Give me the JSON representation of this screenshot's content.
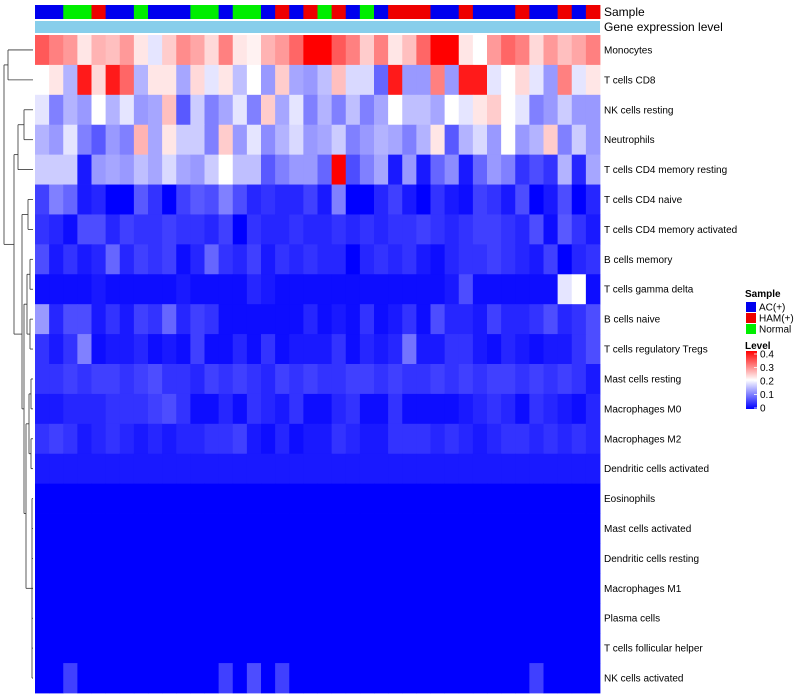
{
  "chart_data": {
    "type": "heatmap",
    "annotations": {
      "sample_label": "Sample",
      "gene_label": "Gene expression level",
      "sample_groups": [
        "AC",
        "AC",
        "N",
        "N",
        "H",
        "AC",
        "AC",
        "N",
        "AC",
        "AC",
        "AC",
        "N",
        "N",
        "AC",
        "N",
        "N",
        "AC",
        "H",
        "AC",
        "H",
        "N",
        "H",
        "AC",
        "N",
        "AC",
        "H",
        "H",
        "H",
        "AC",
        "AC",
        "H",
        "AC",
        "AC",
        "AC",
        "H",
        "AC",
        "AC",
        "H",
        "AC",
        "H"
      ],
      "gene_color": "#87ceeb"
    },
    "rows": [
      "Monocytes",
      "T cells CD8",
      "NK cells resting",
      "Neutrophils",
      "T cells CD4 memory resting",
      "T cells CD4 naive",
      "T cells CD4 memory activated",
      "B cells memory",
      "T cells gamma delta",
      "B cells naive",
      "T cells regulatory  Tregs",
      "Mast cells resting",
      "Macrophages M0",
      "Macrophages M2",
      "Dendritic cells activated",
      "Eosinophils",
      "Mast cells activated",
      "Dendritic cells resting",
      "Macrophages M1",
      "Plasma cells",
      "T cells follicular helper",
      "NK cells activated"
    ],
    "values": [
      [
        0.33,
        0.3,
        0.28,
        0.22,
        0.26,
        0.25,
        0.28,
        0.22,
        0.18,
        0.24,
        0.29,
        0.27,
        0.23,
        0.3,
        0.22,
        0.21,
        0.26,
        0.28,
        0.32,
        0.4,
        0.4,
        0.33,
        0.3,
        0.24,
        0.3,
        0.22,
        0.25,
        0.32,
        0.4,
        0.4,
        0.22,
        0.2,
        0.28,
        0.32,
        0.3,
        0.23,
        0.28,
        0.25,
        0.27,
        0.3
      ],
      [
        0.2,
        0.22,
        0.14,
        0.38,
        0.23,
        0.38,
        0.32,
        0.14,
        0.22,
        0.22,
        0.13,
        0.23,
        0.18,
        0.22,
        0.15,
        0.2,
        0.12,
        0.24,
        0.13,
        0.12,
        0.15,
        0.25,
        0.17,
        0.17,
        0.08,
        0.38,
        0.12,
        0.12,
        0.3,
        0.12,
        0.38,
        0.38,
        0.18,
        0.2,
        0.23,
        0.18,
        0.12,
        0.3,
        0.18,
        0.22
      ],
      [
        0.18,
        0.1,
        0.14,
        0.12,
        0.2,
        0.14,
        0.18,
        0.12,
        0.13,
        0.25,
        0.07,
        0.16,
        0.1,
        0.13,
        0.18,
        0.1,
        0.24,
        0.13,
        0.18,
        0.1,
        0.14,
        0.1,
        0.15,
        0.1,
        0.13,
        0.2,
        0.15,
        0.15,
        0.13,
        0.2,
        0.18,
        0.22,
        0.24,
        0.2,
        0.18,
        0.1,
        0.12,
        0.16,
        0.12,
        0.12
      ],
      [
        0.14,
        0.12,
        0.18,
        0.1,
        0.07,
        0.12,
        0.1,
        0.26,
        0.13,
        0.22,
        0.16,
        0.16,
        0.1,
        0.24,
        0.12,
        0.18,
        0.11,
        0.14,
        0.17,
        0.12,
        0.13,
        0.16,
        0.1,
        0.12,
        0.14,
        0.13,
        0.1,
        0.14,
        0.22,
        0.07,
        0.14,
        0.17,
        0.12,
        0.2,
        0.12,
        0.14,
        0.24,
        0.1,
        0.16,
        0.12
      ],
      [
        0.16,
        0.16,
        0.16,
        0.02,
        0.12,
        0.13,
        0.12,
        0.15,
        0.13,
        0.17,
        0.13,
        0.12,
        0.16,
        0.2,
        0.15,
        0.15,
        0.07,
        0.1,
        0.12,
        0.12,
        0.08,
        0.4,
        0.06,
        0.1,
        0.13,
        0.02,
        0.12,
        0.02,
        0.08,
        0.11,
        0.02,
        0.08,
        0.12,
        0.1,
        0.04,
        0.06,
        0.04,
        0.14,
        0.03,
        0.13
      ],
      [
        0.05,
        0.1,
        0.08,
        0.02,
        0.03,
        0.0,
        0.0,
        0.07,
        0.04,
        0.0,
        0.05,
        0.07,
        0.06,
        0.1,
        0.06,
        0.03,
        0.04,
        0.03,
        0.03,
        0.05,
        0.02,
        0.1,
        0.0,
        0.0,
        0.03,
        0.05,
        0.02,
        0.0,
        0.04,
        0.02,
        0.01,
        0.05,
        0.04,
        0.02,
        0.06,
        0.0,
        0.02,
        0.06,
        0.0,
        0.03
      ],
      [
        0.04,
        0.03,
        0.01,
        0.06,
        0.06,
        0.03,
        0.05,
        0.04,
        0.04,
        0.05,
        0.04,
        0.04,
        0.03,
        0.05,
        0.0,
        0.04,
        0.03,
        0.03,
        0.04,
        0.03,
        0.03,
        0.04,
        0.03,
        0.04,
        0.03,
        0.04,
        0.04,
        0.05,
        0.04,
        0.03,
        0.04,
        0.05,
        0.05,
        0.04,
        0.03,
        0.06,
        0.01,
        0.07,
        0.04,
        0.02
      ],
      [
        0.06,
        0.02,
        0.04,
        0.02,
        0.03,
        0.08,
        0.03,
        0.05,
        0.04,
        0.05,
        0.01,
        0.03,
        0.08,
        0.04,
        0.03,
        0.05,
        0.02,
        0.04,
        0.03,
        0.04,
        0.03,
        0.03,
        0.0,
        0.03,
        0.04,
        0.03,
        0.04,
        0.02,
        0.01,
        0.03,
        0.04,
        0.04,
        0.05,
        0.04,
        0.03,
        0.02,
        0.05,
        0.0,
        0.03,
        0.04
      ],
      [
        0.01,
        0.01,
        0.01,
        0.01,
        0.02,
        0.01,
        0.01,
        0.01,
        0.01,
        0.01,
        0.02,
        0.01,
        0.01,
        0.01,
        0.01,
        0.03,
        0.02,
        0.01,
        0.01,
        0.01,
        0.01,
        0.01,
        0.01,
        0.01,
        0.01,
        0.01,
        0.01,
        0.01,
        0.01,
        0.02,
        0.06,
        0.01,
        0.01,
        0.01,
        0.01,
        0.01,
        0.01,
        0.18,
        0.2,
        0.01
      ],
      [
        0.12,
        0.03,
        0.06,
        0.06,
        0.02,
        0.04,
        0.02,
        0.05,
        0.04,
        0.08,
        0.03,
        0.05,
        0.04,
        0.01,
        0.01,
        0.01,
        0.01,
        0.01,
        0.01,
        0.03,
        0.01,
        0.02,
        0.01,
        0.04,
        0.01,
        0.02,
        0.04,
        0.01,
        0.06,
        0.03,
        0.03,
        0.02,
        0.05,
        0.03,
        0.03,
        0.04,
        0.06,
        0.03,
        0.04,
        0.06
      ],
      [
        0.04,
        0.02,
        0.04,
        0.1,
        0.01,
        0.02,
        0.02,
        0.03,
        0.01,
        0.02,
        0.01,
        0.05,
        0.01,
        0.01,
        0.03,
        0.01,
        0.04,
        0.01,
        0.02,
        0.02,
        0.02,
        0.04,
        0.01,
        0.03,
        0.02,
        0.03,
        0.09,
        0.02,
        0.02,
        0.04,
        0.04,
        0.02,
        0.01,
        0.03,
        0.02,
        0.01,
        0.02,
        0.02,
        0.04,
        0.06
      ],
      [
        0.04,
        0.04,
        0.05,
        0.04,
        0.05,
        0.05,
        0.04,
        0.05,
        0.06,
        0.04,
        0.04,
        0.03,
        0.05,
        0.04,
        0.05,
        0.04,
        0.03,
        0.05,
        0.04,
        0.05,
        0.04,
        0.04,
        0.05,
        0.05,
        0.04,
        0.05,
        0.04,
        0.04,
        0.05,
        0.04,
        0.05,
        0.04,
        0.05,
        0.05,
        0.04,
        0.05,
        0.04,
        0.05,
        0.04,
        0.02
      ],
      [
        0.02,
        0.02,
        0.03,
        0.03,
        0.03,
        0.04,
        0.04,
        0.04,
        0.05,
        0.06,
        0.04,
        0.01,
        0.01,
        0.03,
        0.01,
        0.04,
        0.03,
        0.02,
        0.04,
        0.01,
        0.01,
        0.03,
        0.04,
        0.01,
        0.01,
        0.04,
        0.01,
        0.01,
        0.01,
        0.01,
        0.02,
        0.03,
        0.04,
        0.03,
        0.01,
        0.04,
        0.03,
        0.02,
        0.01,
        0.03
      ],
      [
        0.04,
        0.05,
        0.04,
        0.02,
        0.03,
        0.04,
        0.03,
        0.02,
        0.03,
        0.02,
        0.03,
        0.03,
        0.04,
        0.04,
        0.05,
        0.02,
        0.01,
        0.03,
        0.01,
        0.02,
        0.02,
        0.04,
        0.03,
        0.02,
        0.02,
        0.04,
        0.04,
        0.04,
        0.03,
        0.04,
        0.03,
        0.02,
        0.03,
        0.04,
        0.04,
        0.03,
        0.04,
        0.03,
        0.04,
        0.03
      ],
      [
        0.02,
        0.02,
        0.02,
        0.02,
        0.02,
        0.02,
        0.02,
        0.02,
        0.02,
        0.02,
        0.02,
        0.02,
        0.02,
        0.02,
        0.02,
        0.02,
        0.02,
        0.02,
        0.02,
        0.02,
        0.02,
        0.02,
        0.02,
        0.02,
        0.02,
        0.02,
        0.02,
        0.02,
        0.02,
        0.02,
        0.02,
        0.02,
        0.02,
        0.02,
        0.02,
        0.02,
        0.02,
        0.02,
        0.02,
        0.02
      ],
      [
        0,
        0,
        0,
        0,
        0,
        0,
        0,
        0,
        0,
        0,
        0,
        0,
        0,
        0,
        0,
        0,
        0,
        0,
        0,
        0,
        0,
        0,
        0,
        0,
        0,
        0,
        0,
        0,
        0,
        0,
        0,
        0,
        0,
        0,
        0,
        0,
        0,
        0,
        0,
        0
      ],
      [
        0,
        0,
        0,
        0,
        0,
        0,
        0,
        0,
        0,
        0,
        0,
        0,
        0,
        0,
        0,
        0,
        0,
        0,
        0,
        0,
        0,
        0,
        0,
        0,
        0,
        0,
        0,
        0,
        0,
        0,
        0,
        0,
        0,
        0,
        0,
        0,
        0,
        0,
        0,
        0
      ],
      [
        0,
        0,
        0,
        0,
        0,
        0,
        0,
        0,
        0,
        0,
        0,
        0,
        0,
        0,
        0,
        0,
        0,
        0,
        0,
        0,
        0,
        0,
        0,
        0,
        0,
        0,
        0,
        0,
        0,
        0,
        0,
        0,
        0,
        0,
        0,
        0,
        0,
        0,
        0,
        0
      ],
      [
        0,
        0,
        0,
        0,
        0,
        0,
        0,
        0,
        0,
        0,
        0,
        0,
        0,
        0,
        0,
        0,
        0,
        0,
        0,
        0,
        0,
        0,
        0,
        0,
        0,
        0,
        0,
        0,
        0,
        0,
        0,
        0,
        0,
        0,
        0,
        0,
        0,
        0,
        0,
        0
      ],
      [
        0,
        0,
        0,
        0,
        0,
        0,
        0,
        0,
        0,
        0,
        0,
        0,
        0,
        0,
        0,
        0,
        0,
        0,
        0,
        0,
        0,
        0,
        0,
        0,
        0,
        0,
        0,
        0,
        0,
        0,
        0,
        0,
        0,
        0,
        0,
        0,
        0,
        0,
        0,
        0
      ],
      [
        0,
        0,
        0,
        0,
        0,
        0,
        0,
        0,
        0,
        0,
        0,
        0,
        0,
        0,
        0,
        0,
        0,
        0,
        0,
        0,
        0,
        0,
        0,
        0,
        0,
        0,
        0,
        0,
        0,
        0,
        0,
        0,
        0,
        0,
        0,
        0,
        0,
        0,
        0,
        0
      ],
      [
        0,
        0,
        0.05,
        0,
        0,
        0,
        0,
        0,
        0,
        0,
        0,
        0,
        0,
        0.05,
        0,
        0.06,
        0,
        0.05,
        0,
        0,
        0,
        0,
        0,
        0,
        0,
        0,
        0,
        0,
        0,
        0,
        0,
        0,
        0,
        0,
        0,
        0.05,
        0,
        0,
        0,
        0
      ]
    ],
    "legend": {
      "sample_title": "Sample",
      "groups": [
        {
          "key": "AC",
          "label": "AC(+)",
          "color": "#0000ee"
        },
        {
          "key": "H",
          "label": "HAM(+)",
          "color": "#ee0000"
        },
        {
          "key": "N",
          "label": "Normal",
          "color": "#00ee00"
        }
      ],
      "level_title": "Level",
      "level_ticks": [
        "0.4",
        "0.3",
        "0.2",
        "0.1",
        "0"
      ],
      "level_range": [
        0,
        0.4
      ]
    },
    "colors": {
      "low": "#0000ff",
      "mid": "#ffffff",
      "high": "#ff0000"
    }
  }
}
